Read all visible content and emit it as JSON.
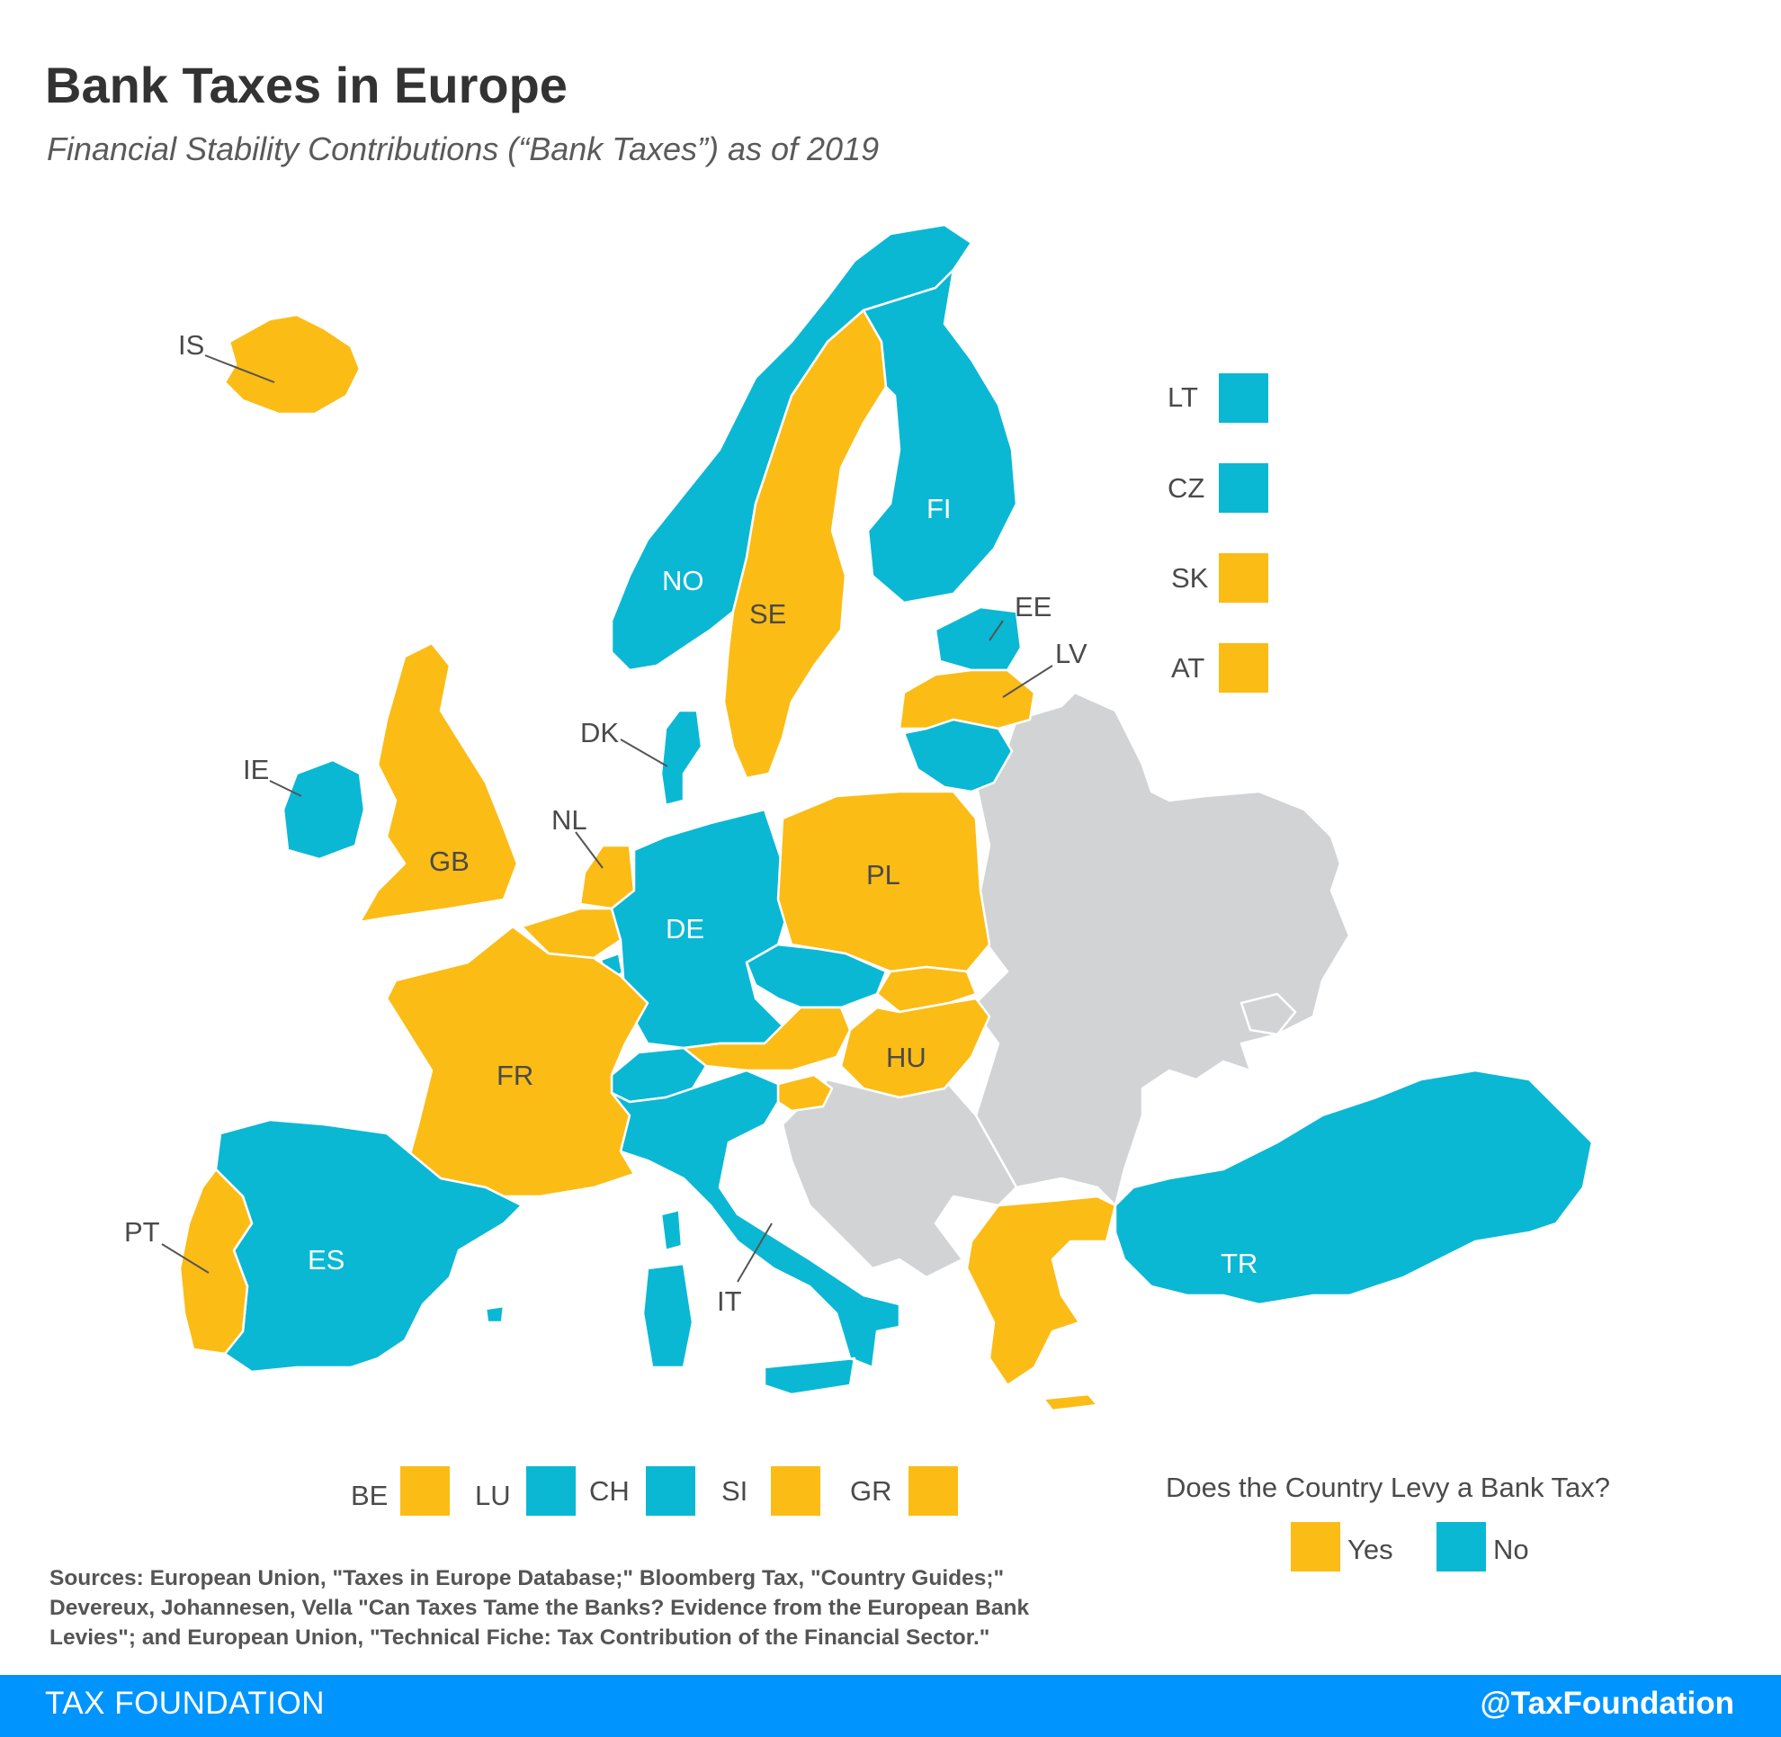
{
  "title": "Bank Taxes in Europe",
  "subtitle": "Financial Stability Contributions (“Bank Taxes”) as of 2019",
  "colors": {
    "yes": "#fbbc16",
    "no": "#0ab8d4",
    "other": "#d2d3d5",
    "border": "#ffffff"
  },
  "countries": {
    "IS": {
      "code": "IS",
      "bank_tax": true
    },
    "NO": {
      "code": "NO",
      "bank_tax": false
    },
    "SE": {
      "code": "SE",
      "bank_tax": true
    },
    "FI": {
      "code": "FI",
      "bank_tax": false
    },
    "EE": {
      "code": "EE",
      "bank_tax": false
    },
    "LV": {
      "code": "LV",
      "bank_tax": true
    },
    "LT": {
      "code": "LT",
      "bank_tax": false
    },
    "DK": {
      "code": "DK",
      "bank_tax": false
    },
    "IE": {
      "code": "IE",
      "bank_tax": false
    },
    "GB": {
      "code": "GB",
      "bank_tax": true
    },
    "NL": {
      "code": "NL",
      "bank_tax": true
    },
    "BE": {
      "code": "BE",
      "bank_tax": true
    },
    "LU": {
      "code": "LU",
      "bank_tax": false
    },
    "DE": {
      "code": "DE",
      "bank_tax": false
    },
    "PL": {
      "code": "PL",
      "bank_tax": true
    },
    "CZ": {
      "code": "CZ",
      "bank_tax": false
    },
    "SK": {
      "code": "SK",
      "bank_tax": true
    },
    "AT": {
      "code": "AT",
      "bank_tax": true
    },
    "HU": {
      "code": "HU",
      "bank_tax": true
    },
    "CH": {
      "code": "CH",
      "bank_tax": false
    },
    "SI": {
      "code": "SI",
      "bank_tax": true
    },
    "FR": {
      "code": "FR",
      "bank_tax": true
    },
    "IT": {
      "code": "IT",
      "bank_tax": false
    },
    "ES": {
      "code": "ES",
      "bank_tax": false
    },
    "PT": {
      "code": "PT",
      "bank_tax": true
    },
    "GR": {
      "code": "GR",
      "bank_tax": true
    },
    "TR": {
      "code": "TR",
      "bank_tax": false
    }
  },
  "legend": {
    "title": "Does the Country Levy a Bank Tax?",
    "yes": "Yes",
    "no": "No"
  },
  "sources": "Sources: European Union, \"Taxes in Europe Database;\" Bloomberg Tax, \"Country Guides;\" Devereux, Johannesen, Vella \"Can Taxes Tame the Banks? Evidence from the European Bank Levies\"; and European Union, \"Technical Fiche: Tax Contribution of the Financial Sector.\"",
  "footer": {
    "org": "TAX FOUNDATION",
    "handle": "@TaxFoundation"
  }
}
